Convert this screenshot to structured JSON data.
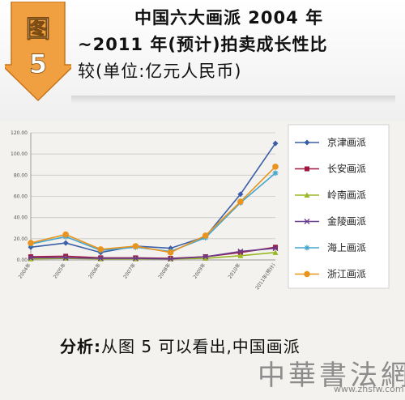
{
  "header": {
    "badge_char": "图",
    "badge_num": "5",
    "title_line1": "中国六大画派 2004 年",
    "title_line2": "~2011 年(预计)拍卖成长性比",
    "title_line3": "较(单位:亿元人民币)",
    "badge_color": "#f0a040"
  },
  "chart_data": {
    "type": "line",
    "x": [
      "2004年",
      "2005年",
      "2006年",
      "2007年",
      "2008年",
      "2009年",
      "2010年",
      "2011年(预计)"
    ],
    "yticks": [
      "120.00",
      "100.00",
      "80.00",
      "60.00",
      "40.00",
      "20.00",
      "0.00"
    ],
    "ylim": [
      0,
      120
    ],
    "grid": "horizontal",
    "legend_position": "right",
    "series": [
      {
        "name": "京津画派",
        "color": "#3a5fa8",
        "marker": "diamond",
        "values": [
          12,
          16,
          7,
          13,
          11,
          22,
          62,
          110
        ]
      },
      {
        "name": "长安画派",
        "color": "#a01840",
        "marker": "square",
        "values": [
          3,
          3.5,
          2,
          2,
          1.5,
          3,
          7,
          12
        ]
      },
      {
        "name": "岭南画派",
        "color": "#9ab824",
        "marker": "triangle",
        "values": [
          1,
          1.5,
          1,
          1,
          1,
          1.5,
          4,
          7
        ]
      },
      {
        "name": "金陵画派",
        "color": "#6a3c8c",
        "marker": "x",
        "values": [
          2,
          2,
          1.5,
          1.5,
          1,
          3,
          8,
          11
        ]
      },
      {
        "name": "海上画派",
        "color": "#46a6cc",
        "marker": "star",
        "values": [
          15,
          22,
          9,
          12,
          8,
          21,
          54,
          82
        ]
      },
      {
        "name": "浙江画派",
        "color": "#e8941e",
        "marker": "circle",
        "values": [
          16,
          24,
          10,
          13,
          7,
          23,
          55,
          88
        ]
      }
    ]
  },
  "analysis": {
    "label": "分析:",
    "text": "从图 5 可以看出,中国画派"
  },
  "watermark": {
    "text": "中華書法網",
    "url": "www.zhsfw.com"
  }
}
